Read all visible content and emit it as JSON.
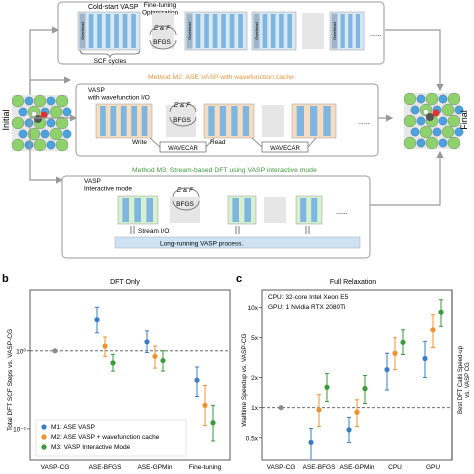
{
  "side_labels": {
    "initial": "Initial",
    "final": "Final"
  },
  "top_panel": {
    "cold_start_label": "Cold-start VASP",
    "fine_tuning_label": "Fine-tuning\nOptimization",
    "ef_label": "E & F",
    "bfgs_label": "BFGS",
    "overhead_label": "Overhead",
    "scf_label": "SCF cycles",
    "ellipsis": "......"
  },
  "m2_panel": {
    "title": "Method M2: ASE VASP with wavefunction cache",
    "vasp_label": "VASP\nwith wavefunction I/O",
    "ef_label": "E & F",
    "bfgs_label": "BFGS",
    "write_label": "Write",
    "read_label": "Read",
    "wavecar_label": "WAVECAR",
    "ellipsis": "......"
  },
  "m3_panel": {
    "title": "Method M3: Stream-based DFT using VASP interactive mode",
    "vasp_label": "VASP\nInteractive mode",
    "ef_label": "E & F",
    "bfgs_label": "BFGS",
    "stream_label": "Stream I/O",
    "long_running_label": "Long-running VASP process.",
    "ellipsis": "......"
  },
  "colors": {
    "m1": "#3b7dc4",
    "m2": "#f0922b",
    "m3": "#3a9a3c",
    "baseline": "#8a8a8a",
    "m2_accent": "#e8953a",
    "m3_accent": "#3f9a3f"
  },
  "panel_b": {
    "letter": "b",
    "title": "DFT Only",
    "ylabel": "Total DFT SCF Steps vs. VASP-CG",
    "ytick_labels": [
      "10⁰",
      "10⁻¹"
    ],
    "xtick_labels": [
      "VASP-CG",
      "ASE-BFGS",
      "ASE-GPMin",
      "Fine-tuning"
    ],
    "legend": [
      "M1: ASE VASP",
      "M2: ASE VASP + wavefunction cache",
      "M3: VASP Interactive Mode"
    ]
  },
  "panel_c": {
    "letter": "c",
    "title": "Full Relaxation",
    "ylabel": "Walltime Speedup vs. VASP-CG",
    "ylabel_right": "Best DFT Calls Speed-up\nvs. VASP CG",
    "ytick_labels": [
      "10x",
      "5x",
      "2x",
      "1x",
      "0.5x"
    ],
    "xtick_labels": [
      "VASP-CG",
      "ASE-BFGS",
      "ASE-GPMin",
      "CPU",
      "GPU"
    ],
    "info_lines": [
      "CPU: 32-core Intel Xeon E5",
      "GPU: 1 Nvidia RTX 2080Ti"
    ]
  },
  "chart_data": [
    {
      "type": "scatter",
      "title": "DFT Only",
      "ylabel": "Total DFT SCF Steps vs. VASP-CG",
      "yscale": "log",
      "ylim": [
        0.04,
        6
      ],
      "categories": [
        "VASP-CG",
        "ASE-BFGS",
        "ASE-GPMin",
        "Fine-tuning"
      ],
      "baseline": 1.0,
      "series": [
        {
          "name": "M1: ASE VASP",
          "values": [
            1.0,
            2.5,
            1.3,
            0.42
          ],
          "low": [
            null,
            1.7,
            0.95,
            0.26
          ],
          "high": [
            null,
            3.6,
            1.8,
            0.62
          ]
        },
        {
          "name": "M2: ASE VASP + wavefunction cache",
          "values": [
            null,
            1.15,
            0.85,
            0.2
          ],
          "low": [
            null,
            0.85,
            0.6,
            0.11
          ],
          "high": [
            null,
            1.5,
            1.15,
            0.36
          ]
        },
        {
          "name": "M3: VASP Interactive Mode",
          "values": [
            null,
            0.7,
            0.75,
            0.12
          ],
          "low": [
            null,
            0.55,
            0.55,
            0.07
          ],
          "high": [
            null,
            0.9,
            1.0,
            0.2
          ]
        }
      ]
    },
    {
      "type": "scatter",
      "title": "Full Relaxation",
      "ylabel": "Walltime Speedup vs. VASP-CG",
      "yscale": "log",
      "ylim": [
        0.3,
        15
      ],
      "categories": [
        "VASP-CG",
        "ASE-BFGS",
        "ASE-GPMin",
        "CPU",
        "GPU"
      ],
      "baseline": 1.0,
      "series": [
        {
          "name": "M1: ASE VASP",
          "values": [
            1.0,
            0.45,
            0.6,
            2.4,
            3.1
          ],
          "low": [
            null,
            0.3,
            0.45,
            1.5,
            2.0
          ],
          "high": [
            null,
            0.62,
            0.8,
            3.5,
            4.6
          ]
        },
        {
          "name": "M2: ASE VASP + wavefunction cache",
          "values": [
            null,
            0.95,
            0.9,
            3.5,
            6.0
          ],
          "low": [
            null,
            0.65,
            0.65,
            2.4,
            4.0
          ],
          "high": [
            null,
            1.35,
            1.2,
            5.0,
            8.5
          ]
        },
        {
          "name": "M3: VASP Interactive Mode",
          "values": [
            null,
            1.6,
            1.55,
            4.5,
            9.0
          ],
          "low": [
            null,
            1.15,
            1.1,
            3.4,
            6.5
          ],
          "high": [
            null,
            2.2,
            2.1,
            6.0,
            12.0
          ]
        }
      ]
    }
  ]
}
